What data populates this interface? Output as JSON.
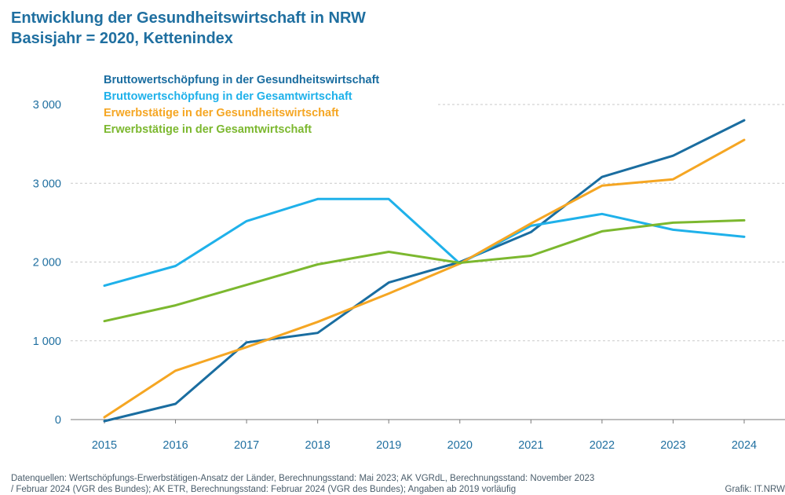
{
  "title": {
    "line1": "Entwicklung der Gesundheitswirtschaft in NRW",
    "line2": "Basisjahr = 2020, Kettenindex"
  },
  "footer": {
    "source_line1": "Datenquellen: Wertschöpfungs-Erwerbstätigen-Ansatz der Länder, Berechnungsstand: Mai 2023; AK VGRdL, Berechnungsstand: November 2023",
    "source_line2": "/ Februar 2024 (VGR des Bundes); AK ETR, Berechnungsstand: Februar 2024 (VGR des Bundes); Angaben ab 2019 vorläufig",
    "credit": "Grafik: IT.NRW"
  },
  "chart_data": {
    "type": "line",
    "x": [
      "2015",
      "2016",
      "2017",
      "2018",
      "2019",
      "2020",
      "2021",
      "2022",
      "2023",
      "2024"
    ],
    "y_ticks": [
      "0",
      "1 000",
      "2 000",
      "3 000",
      "3 000"
    ],
    "ylim": [
      0,
      4
    ],
    "grid": true,
    "legend_position": "top-left",
    "series": [
      {
        "name": "Bruttowertschöpfung in der Gesundheitswirtschaft",
        "color": "#1a6da0",
        "values": [
          -0.02,
          0.2,
          0.98,
          1.1,
          1.74,
          2.0,
          2.38,
          3.08,
          3.35,
          3.8
        ]
      },
      {
        "name": "Bruttowertschöpfung in der Gesamtwirtschaft",
        "color": "#1fb1ea",
        "values": [
          1.7,
          1.95,
          2.52,
          2.8,
          2.8,
          1.98,
          2.46,
          2.61,
          2.41,
          2.32
        ]
      },
      {
        "name": "Erwerbstätige in der Gesundheitswirtschaft",
        "color": "#f5a623",
        "values": [
          0.03,
          0.62,
          0.92,
          1.24,
          1.6,
          1.98,
          2.49,
          2.97,
          3.05,
          3.55
        ]
      },
      {
        "name": "Erwerbstätige in der Gesamtwirtschaft",
        "color": "#7cb82f",
        "values": [
          1.25,
          1.45,
          1.71,
          1.97,
          2.13,
          1.99,
          2.08,
          2.39,
          2.5,
          2.53
        ]
      }
    ],
    "axis_color": "#1f6fa0"
  }
}
